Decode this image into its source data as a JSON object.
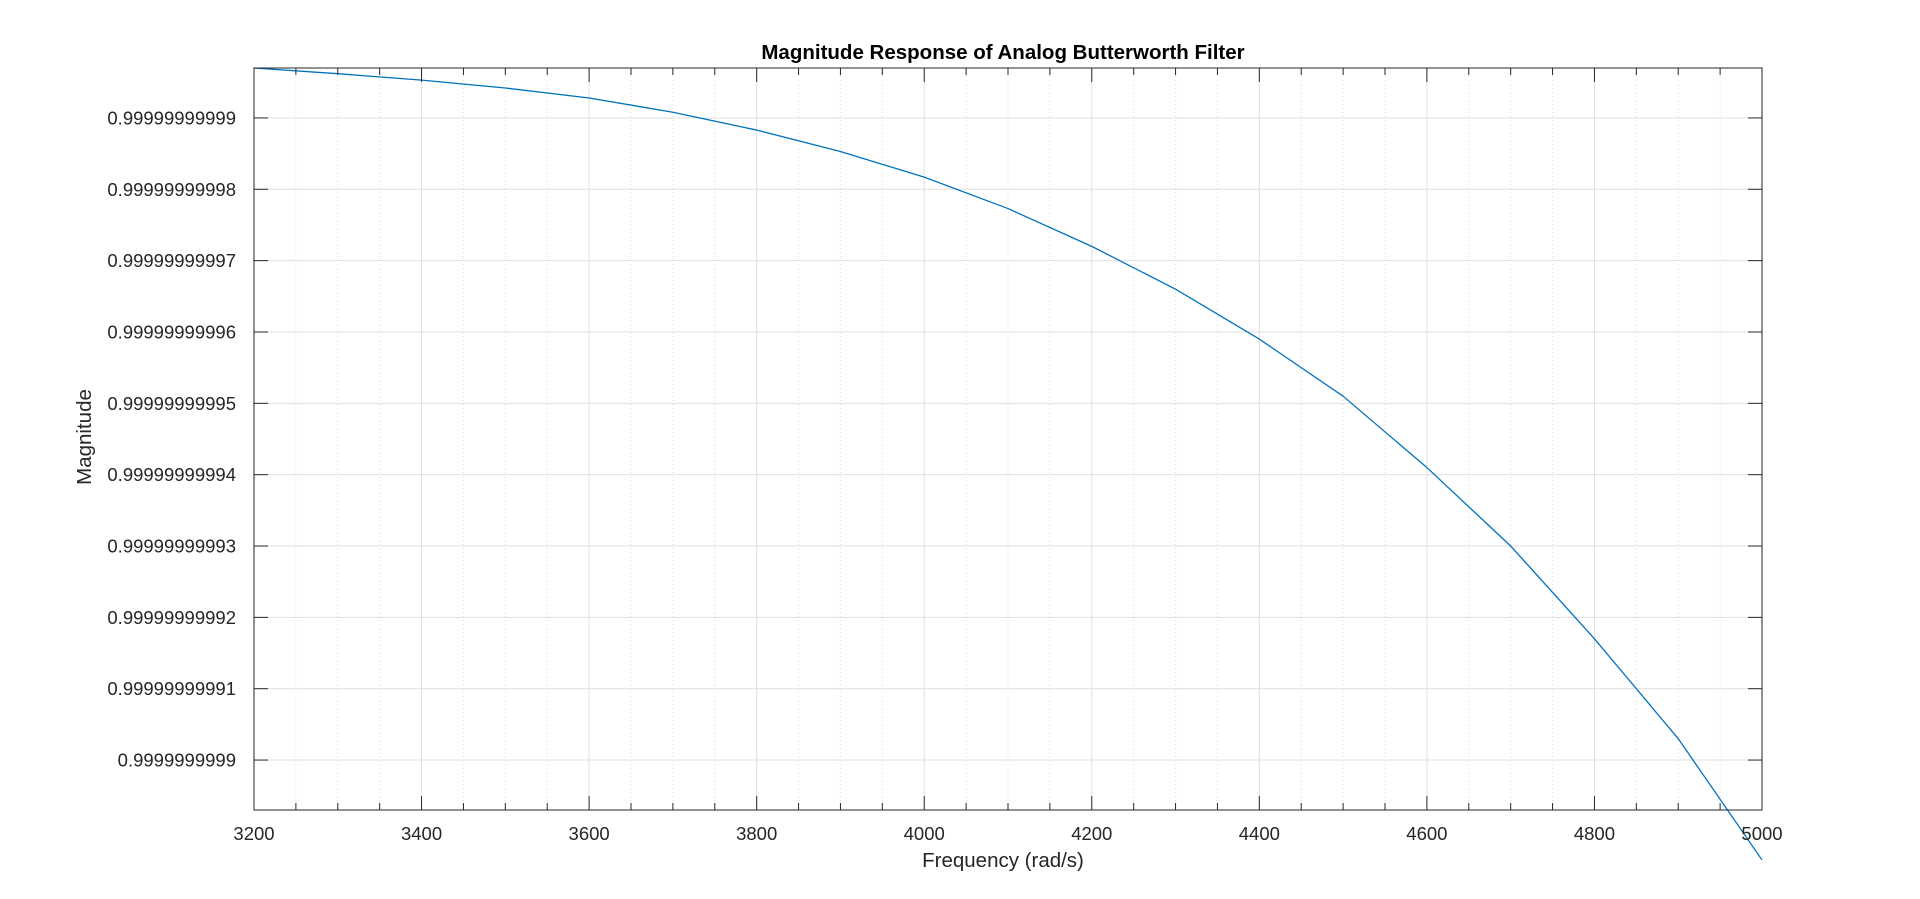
{
  "chart_data": {
    "type": "line",
    "title": "Magnitude Response of Analog Butterworth Filter",
    "xlabel": "Frequency (rad/s)",
    "ylabel": "Magnitude",
    "xlim": [
      3200,
      5000
    ],
    "ylim": [
      0.999999999893,
      0.999999999997
    ],
    "x_ticks": [
      3200,
      3400,
      3600,
      3800,
      4000,
      4200,
      4400,
      4600,
      4800,
      5000
    ],
    "x_tick_labels": [
      "3200",
      "3400",
      "3600",
      "3800",
      "4000",
      "4200",
      "4400",
      "4600",
      "4800",
      "5000"
    ],
    "y_ticks": [
      0.9999999999,
      0.99999999991,
      0.99999999992,
      0.99999999993,
      0.99999999994,
      0.99999999995,
      0.99999999996,
      0.99999999997,
      0.99999999998,
      0.99999999999
    ],
    "y_tick_labels": [
      "0.9999999999",
      "0.99999999991",
      "0.99999999992",
      "0.99999999993",
      "0.99999999994",
      "0.99999999995",
      "0.99999999996",
      "0.99999999997",
      "0.99999999998",
      "0.99999999999"
    ],
    "grid": true,
    "minor_grid_x": true,
    "series": [
      {
        "color": "#0072BD",
        "x": [
          3200,
          3300,
          3400,
          3500,
          3600,
          3700,
          3800,
          3900,
          4000,
          4100,
          4200,
          4300,
          4400,
          4500,
          4600,
          4700,
          4800,
          4900,
          5000
        ],
        "y": [
          0.999999999997,
          0.9999999999962,
          0.9999999999953,
          0.9999999999942,
          0.9999999999928,
          0.9999999999908,
          0.9999999999883,
          0.9999999999853,
          0.9999999999817,
          0.9999999999773,
          0.999999999972,
          0.999999999966,
          0.999999999959,
          0.999999999951,
          0.999999999941,
          0.99999999993,
          0.999999999917,
          0.999999999903,
          0.999999999886
        ]
      }
    ]
  }
}
